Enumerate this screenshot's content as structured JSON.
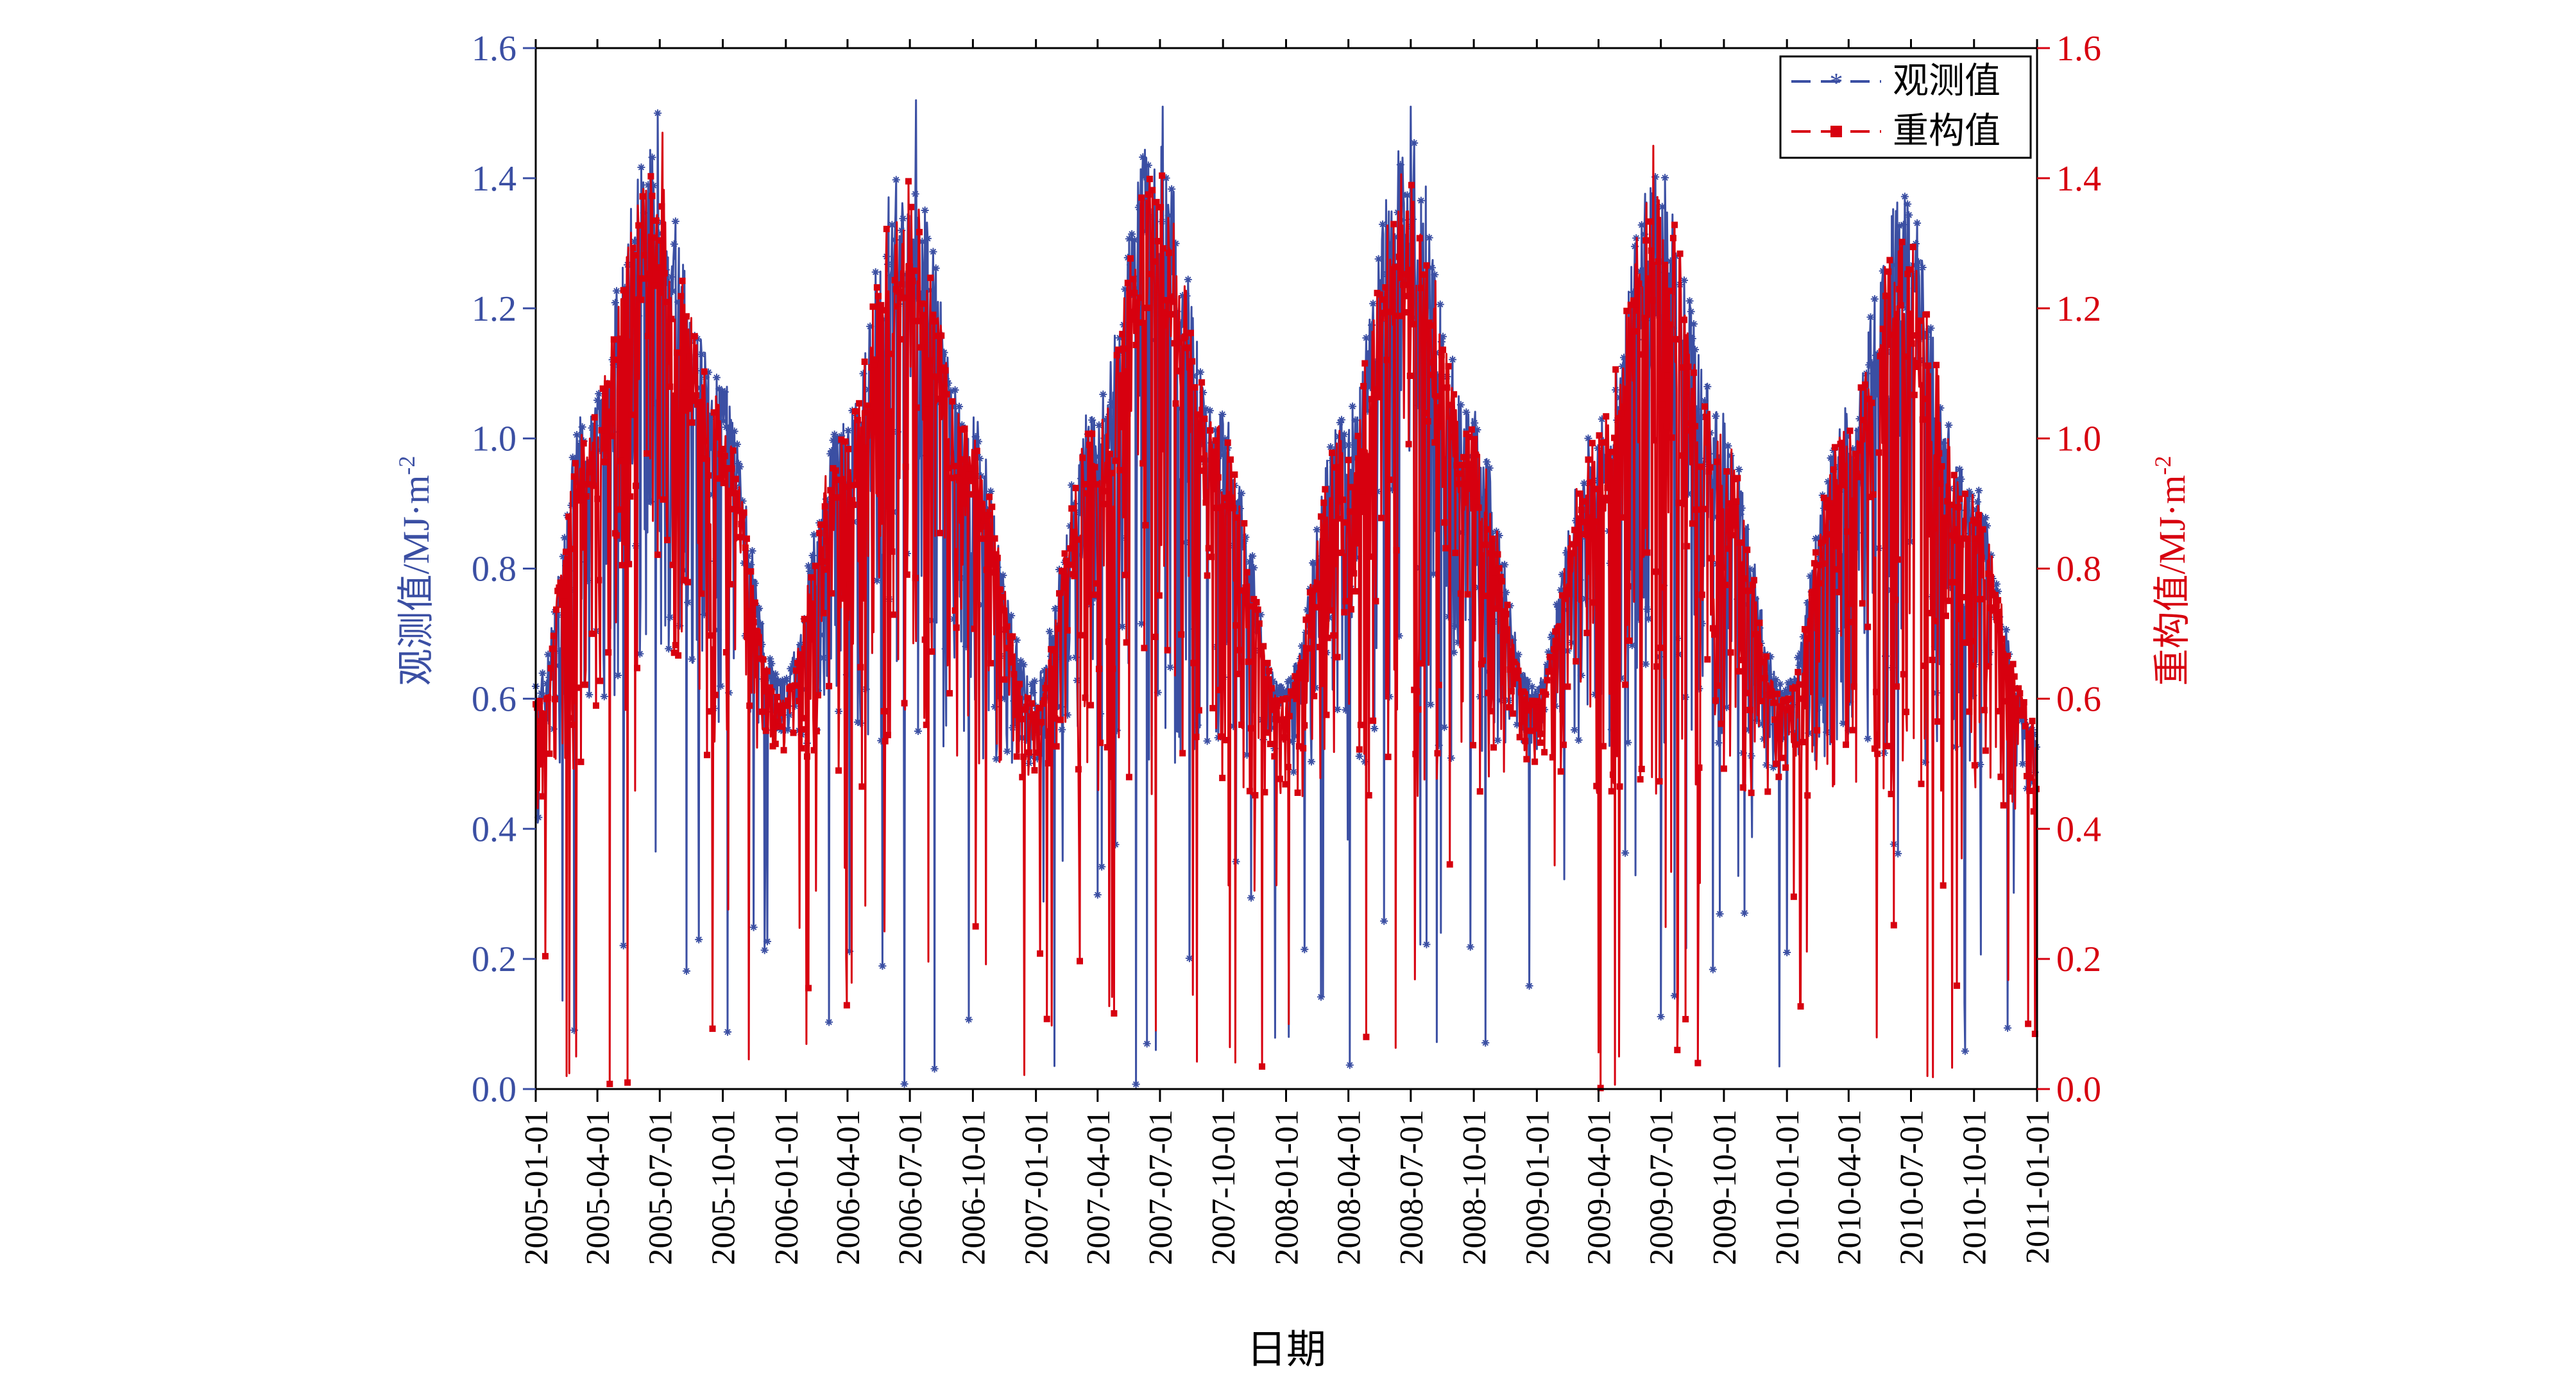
{
  "chart_data": {
    "type": "line",
    "title": "",
    "xlabel": "日期",
    "ylabel_left": "观测值/MJ·m",
    "ylabel_left_sup": "-2",
    "ylabel_right": "重构值/MJ·m",
    "ylabel_right_sup": "-2",
    "x_start": "2005-01-01",
    "x_end": "2011-01-01",
    "x_ticks": [
      "2005-01-01",
      "2005-04-01",
      "2005-07-01",
      "2005-10-01",
      "2006-01-01",
      "2006-04-01",
      "2006-07-01",
      "2006-10-01",
      "2007-01-01",
      "2007-04-01",
      "2007-07-01",
      "2007-10-01",
      "2008-01-01",
      "2008-04-01",
      "2008-07-01",
      "2008-10-01",
      "2009-01-01",
      "2009-04-01",
      "2009-07-01",
      "2009-10-01",
      "2010-01-01",
      "2010-04-01",
      "2010-07-01",
      "2010-10-01",
      "2011-01-01"
    ],
    "ylim": [
      0.0,
      1.6
    ],
    "y_ticks": [
      "0.0",
      "0.2",
      "0.4",
      "0.6",
      "0.8",
      "1.0",
      "1.2",
      "1.4",
      "1.6"
    ],
    "legend_position": "top-right",
    "series": [
      {
        "name": "观测值",
        "axis": "left",
        "color": "#3b4fa3",
        "marker": "asterisk",
        "envelope": {
          "dates": [
            "2005-01-01",
            "2005-03-15",
            "2005-06-20",
            "2005-09-20",
            "2005-12-25",
            "2006-03-20",
            "2006-06-25",
            "2006-09-25",
            "2006-12-28",
            "2007-03-25",
            "2007-06-25",
            "2007-09-25",
            "2007-12-28",
            "2008-03-25",
            "2008-06-25",
            "2008-09-25",
            "2008-12-28",
            "2009-03-25",
            "2009-06-25",
            "2009-09-25",
            "2009-12-28",
            "2010-03-25",
            "2010-06-20",
            "2010-09-20",
            "2010-12-31"
          ],
          "upper": [
            0.62,
            1.05,
            1.45,
            1.12,
            0.63,
            1.02,
            1.45,
            1.05,
            0.63,
            1.05,
            1.48,
            1.05,
            0.62,
            1.05,
            1.48,
            1.05,
            0.62,
            1.02,
            1.42,
            1.05,
            0.62,
            1.05,
            1.38,
            0.95,
            0.55
          ],
          "lower": [
            0.4,
            0.55,
            0.65,
            0.55,
            0.55,
            0.5,
            0.55,
            0.5,
            0.5,
            0.5,
            0.5,
            0.5,
            0.48,
            0.5,
            0.5,
            0.5,
            0.52,
            0.5,
            0.5,
            0.5,
            0.48,
            0.5,
            0.5,
            0.5,
            0.45
          ]
        },
        "notable_points": [
          {
            "x": "2005-06-28",
            "y": 1.5
          },
          {
            "x": "2006-07-10",
            "y": 1.52
          },
          {
            "x": "2007-06-25",
            "y": 0.06
          },
          {
            "x": "2007-07-05",
            "y": 1.51
          },
          {
            "x": "2008-01-05",
            "y": 0.08
          },
          {
            "x": "2008-07-01",
            "y": 1.51
          },
          {
            "x": "2010-01-01",
            "y": 0.21
          }
        ]
      },
      {
        "name": "重构值",
        "axis": "right",
        "color": "#d7000f",
        "marker": "square",
        "envelope": {
          "dates": [
            "2005-01-01",
            "2005-03-15",
            "2005-06-20",
            "2005-09-20",
            "2005-12-25",
            "2006-03-20",
            "2006-06-25",
            "2006-09-25",
            "2006-12-28",
            "2007-03-25",
            "2007-06-25",
            "2007-09-25",
            "2007-12-28",
            "2008-03-25",
            "2008-06-25",
            "2008-09-25",
            "2008-12-28",
            "2009-03-25",
            "2009-06-25",
            "2009-09-25",
            "2009-12-28",
            "2010-03-25",
            "2010-06-20",
            "2010-09-20",
            "2010-12-31"
          ],
          "upper": [
            0.6,
            1.02,
            1.42,
            1.08,
            0.6,
            1.0,
            1.4,
            1.02,
            0.6,
            1.02,
            1.42,
            1.02,
            0.6,
            1.02,
            1.42,
            1.02,
            0.6,
            1.0,
            1.4,
            1.02,
            0.6,
            1.02,
            1.35,
            0.92,
            0.58
          ],
          "lower": [
            0.38,
            0.5,
            0.6,
            0.5,
            0.52,
            0.45,
            0.5,
            0.45,
            0.48,
            0.45,
            0.45,
            0.45,
            0.45,
            0.45,
            0.45,
            0.45,
            0.5,
            0.45,
            0.45,
            0.45,
            0.45,
            0.45,
            0.45,
            0.45,
            0.42
          ]
        },
        "notable_points": [
          {
            "x": "2005-02-15",
            "y": 0.02
          },
          {
            "x": "2005-03-01",
            "y": 0.05
          },
          {
            "x": "2005-05-15",
            "y": 0.01
          },
          {
            "x": "2005-07-05",
            "y": 1.47
          },
          {
            "x": "2006-10-05",
            "y": 0.25
          },
          {
            "x": "2007-06-25",
            "y": 0.09
          },
          {
            "x": "2008-01-05",
            "y": 0.1
          },
          {
            "x": "2009-05-01",
            "y": 0.05
          },
          {
            "x": "2009-07-25",
            "y": 0.06
          },
          {
            "x": "2009-06-20",
            "y": 1.45
          },
          {
            "x": "2010-07-25",
            "y": 0.02
          }
        ]
      }
    ]
  }
}
